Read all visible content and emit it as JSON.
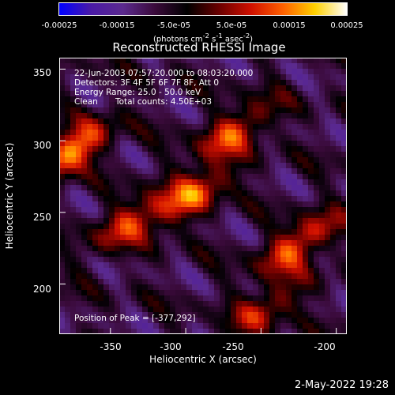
{
  "colorbar": {
    "tick_labels": [
      "-0.00025",
      "-0.00015",
      "-5.0e-05",
      "5.0e-05",
      "0.00015",
      "0.00025"
    ],
    "units_text": "(photons cm",
    "units_exp1": "-2",
    "units_mid": " s",
    "units_exp2": "-1",
    "units_tail": " asec",
    "units_exp3": "-2",
    "units_close": ")",
    "gradient_colors": [
      "#0000ff",
      "#4a1aa6",
      "#5b2a8e",
      "#3a0a3a",
      "#000000",
      "#6a0000",
      "#d01000",
      "#ff6000",
      "#ffd000",
      "#ffffff"
    ]
  },
  "title": "Reconstructed RHESSI Image",
  "info": {
    "time_range": "22-Jun-2003 07:57:20.000 to 08:03:20.000",
    "detectors": "Detectors: 3F 4F 5F 6F 7F 8F, Att 0",
    "energy": "Energy Range: 25.0 - 50.0 keV",
    "method": "Clean",
    "counts": "Total counts: 4.50E+03",
    "peak": "Position of Peak = [-377,292]"
  },
  "xaxis": {
    "label": "Heliocentric X (arcsec)",
    "ticks": [
      "-350",
      "-300",
      "-250",
      "-200"
    ]
  },
  "yaxis": {
    "label": "Heliocentric Y (arcsec)",
    "ticks": [
      "350",
      "300",
      "250",
      "200"
    ]
  },
  "timestamp": "2-May-2022 19:28",
  "chart_data": {
    "type": "heatmap",
    "title": "Reconstructed RHESSI Image",
    "xlabel": "Heliocentric X (arcsec)",
    "ylabel": "Heliocentric Y (arcsec)",
    "xlim": [
      -384,
      -193
    ],
    "ylim": [
      165,
      358
    ],
    "colorbar_range": [
      -0.00025,
      0.00025
    ],
    "peak_position": [
      -377,
      292
    ],
    "sources": [
      {
        "x": -377,
        "y": 292,
        "intensity": 0.00025
      },
      {
        "x": -268,
        "y": 306,
        "intensity": 0.00018
      },
      {
        "x": -295,
        "y": 262,
        "intensity": 0.00019
      },
      {
        "x": -225,
        "y": 228,
        "intensity": 0.0002
      },
      {
        "x": -337,
        "y": 243,
        "intensity": 0.00016
      },
      {
        "x": -247,
        "y": 183,
        "intensity": 0.00014
      }
    ]
  }
}
